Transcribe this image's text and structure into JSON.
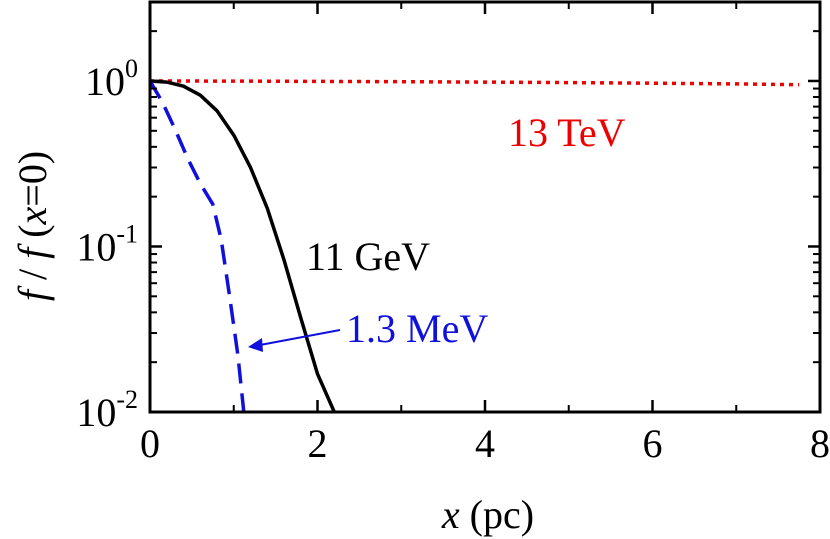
{
  "chart_data": {
    "type": "line",
    "title": "",
    "xlabel": {
      "var": "x",
      "unit": "(pc)"
    },
    "ylabel": {
      "text1": "f",
      "sep": " / ",
      "text2": "f",
      "open": " (",
      "var": "x",
      "eq": "=0)"
    },
    "xlim": [
      0,
      8
    ],
    "ylim": [
      0.01,
      3
    ],
    "yscale": "log",
    "grid": false,
    "x_ticks": [
      "0",
      "2",
      "4",
      "6",
      "8"
    ],
    "y_ticks": [
      {
        "base": "10",
        "exp": "0",
        "value": 1
      },
      {
        "base": "10",
        "exp": "-1",
        "value": 0.1
      },
      {
        "base": "10",
        "exp": "-2",
        "value": 0.01
      }
    ],
    "series": [
      {
        "name": "13 TeV",
        "color": "#ee0000",
        "style": "dotted",
        "x": [
          0,
          1,
          2,
          3,
          4,
          5,
          6,
          7,
          7.75
        ],
        "y": [
          1.0,
          0.998,
          0.994,
          0.99,
          0.985,
          0.978,
          0.97,
          0.96,
          0.95
        ]
      },
      {
        "name": "11 GeV",
        "color": "#000000",
        "style": "solid",
        "x": [
          0,
          0.2,
          0.4,
          0.6,
          0.8,
          1.0,
          1.2,
          1.4,
          1.6,
          1.8,
          2.0,
          2.2
        ],
        "y": [
          1.0,
          0.985,
          0.93,
          0.82,
          0.66,
          0.47,
          0.3,
          0.17,
          0.083,
          0.037,
          0.017,
          0.01
        ]
      },
      {
        "name": "1.3 MeV",
        "color": "#1010dd",
        "style": "dashed",
        "x": [
          0,
          0.15,
          0.3,
          0.45,
          0.6,
          0.75,
          0.85,
          0.95,
          1.05,
          1.12
        ],
        "y": [
          1.0,
          0.74,
          0.51,
          0.34,
          0.24,
          0.18,
          0.11,
          0.05,
          0.022,
          0.01
        ]
      }
    ],
    "annotations": [
      {
        "text": "13 TeV",
        "series": "13 TeV",
        "color": "#ee0000"
      },
      {
        "text": "11 GeV",
        "series": "11 GeV",
        "color": "#000000"
      },
      {
        "text": "1.3 MeV",
        "series": "1.3 MeV",
        "color": "#1010dd",
        "arrow": true
      }
    ]
  }
}
